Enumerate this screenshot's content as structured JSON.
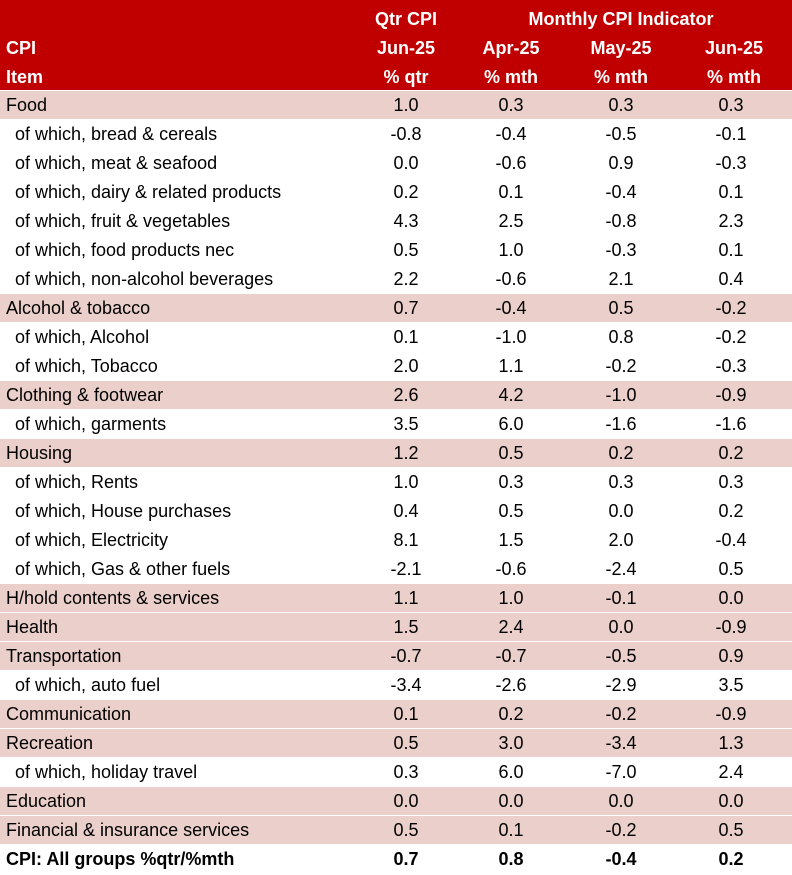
{
  "header": {
    "col0_line2": "CPI",
    "col0_line3": "Item",
    "col1_line1": "Qtr CPI",
    "col1_line2": "Jun-25",
    "col1_line3": "% qtr",
    "group_label": "Monthly CPI Indicator",
    "col2_line2": "Apr-25",
    "col2_line3": "% mth",
    "col3_line2": "May-25",
    "col3_line3": "% mth",
    "col4_line2": "Jun-25",
    "col4_line3": "% mth"
  },
  "colors": {
    "header_bg": "#c00000",
    "header_text": "#ffffff",
    "shaded_row": "#eacfca"
  },
  "rows": [
    {
      "item": "Food",
      "qtr": "1.0",
      "apr": "0.3",
      "may": "0.3",
      "jun": "0.3",
      "kind": "shaded"
    },
    {
      "item": "of which, bread & cereals",
      "qtr": "-0.8",
      "apr": "-0.4",
      "may": "-0.5",
      "jun": "-0.1",
      "kind": "sub"
    },
    {
      "item": "of which, meat & seafood",
      "qtr": "0.0",
      "apr": "-0.6",
      "may": "0.9",
      "jun": "-0.3",
      "kind": "sub"
    },
    {
      "item": "of which, dairy & related products",
      "qtr": "0.2",
      "apr": "0.1",
      "may": "-0.4",
      "jun": "0.1",
      "kind": "sub"
    },
    {
      "item": "of which, fruit & vegetables",
      "qtr": "4.3",
      "apr": "2.5",
      "may": "-0.8",
      "jun": "2.3",
      "kind": "sub"
    },
    {
      "item": "of which, food products nec",
      "qtr": "0.5",
      "apr": "1.0",
      "may": "-0.3",
      "jun": "0.1",
      "kind": "sub"
    },
    {
      "item": "of which, non-alcohol beverages",
      "qtr": "2.2",
      "apr": "-0.6",
      "may": "2.1",
      "jun": "0.4",
      "kind": "sub"
    },
    {
      "item": "Alcohol & tobacco",
      "qtr": "0.7",
      "apr": "-0.4",
      "may": "0.5",
      "jun": "-0.2",
      "kind": "shaded"
    },
    {
      "item": "of which, Alcohol",
      "qtr": "0.1",
      "apr": "-1.0",
      "may": "0.8",
      "jun": "-0.2",
      "kind": "sub"
    },
    {
      "item": "of which, Tobacco",
      "qtr": "2.0",
      "apr": "1.1",
      "may": "-0.2",
      "jun": "-0.3",
      "kind": "sub"
    },
    {
      "item": "Clothing & footwear",
      "qtr": "2.6",
      "apr": "4.2",
      "may": "-1.0",
      "jun": "-0.9",
      "kind": "shaded"
    },
    {
      "item": "of which, garments",
      "qtr": "3.5",
      "apr": "6.0",
      "may": "-1.6",
      "jun": "-1.6",
      "kind": "sub"
    },
    {
      "item": "Housing",
      "qtr": "1.2",
      "apr": "0.5",
      "may": "0.2",
      "jun": "0.2",
      "kind": "shaded"
    },
    {
      "item": "of which, Rents",
      "qtr": "1.0",
      "apr": "0.3",
      "may": "0.3",
      "jun": "0.3",
      "kind": "sub"
    },
    {
      "item": "of which, House purchases",
      "qtr": "0.4",
      "apr": "0.5",
      "may": "0.0",
      "jun": "0.2",
      "kind": "sub"
    },
    {
      "item": "of which, Electricity",
      "qtr": "8.1",
      "apr": "1.5",
      "may": "2.0",
      "jun": "-0.4",
      "kind": "sub"
    },
    {
      "item": "of which, Gas & other fuels",
      "qtr": "-2.1",
      "apr": "-0.6",
      "may": "-2.4",
      "jun": "0.5",
      "kind": "sub"
    },
    {
      "item": "H/hold contents & services",
      "qtr": "1.1",
      "apr": "1.0",
      "may": "-0.1",
      "jun": "0.0",
      "kind": "shaded"
    },
    {
      "item": "Health",
      "qtr": "1.5",
      "apr": "2.4",
      "may": "0.0",
      "jun": "-0.9",
      "kind": "shaded"
    },
    {
      "item": "Transportation",
      "qtr": "-0.7",
      "apr": "-0.7",
      "may": "-0.5",
      "jun": "0.9",
      "kind": "shaded"
    },
    {
      "item": "of which, auto fuel",
      "qtr": "-3.4",
      "apr": "-2.6",
      "may": "-2.9",
      "jun": "3.5",
      "kind": "sub"
    },
    {
      "item": "Communication",
      "qtr": "0.1",
      "apr": "0.2",
      "may": "-0.2",
      "jun": "-0.9",
      "kind": "shaded"
    },
    {
      "item": "Recreation",
      "qtr": "0.5",
      "apr": "3.0",
      "may": "-3.4",
      "jun": "1.3",
      "kind": "shaded"
    },
    {
      "item": "of which, holiday travel",
      "qtr": "0.3",
      "apr": "6.0",
      "may": "-7.0",
      "jun": "2.4",
      "kind": "sub"
    },
    {
      "item": "Education",
      "qtr": "0.0",
      "apr": "0.0",
      "may": "0.0",
      "jun": "0.0",
      "kind": "shaded"
    },
    {
      "item": "Financial & insurance services",
      "qtr": "0.5",
      "apr": "0.1",
      "may": "-0.2",
      "jun": "0.5",
      "kind": "shaded"
    },
    {
      "item": "CPI: All groups %qtr/%mth",
      "qtr": "0.7",
      "apr": "0.8",
      "may": "-0.4",
      "jun": "0.2",
      "kind": "total"
    }
  ]
}
